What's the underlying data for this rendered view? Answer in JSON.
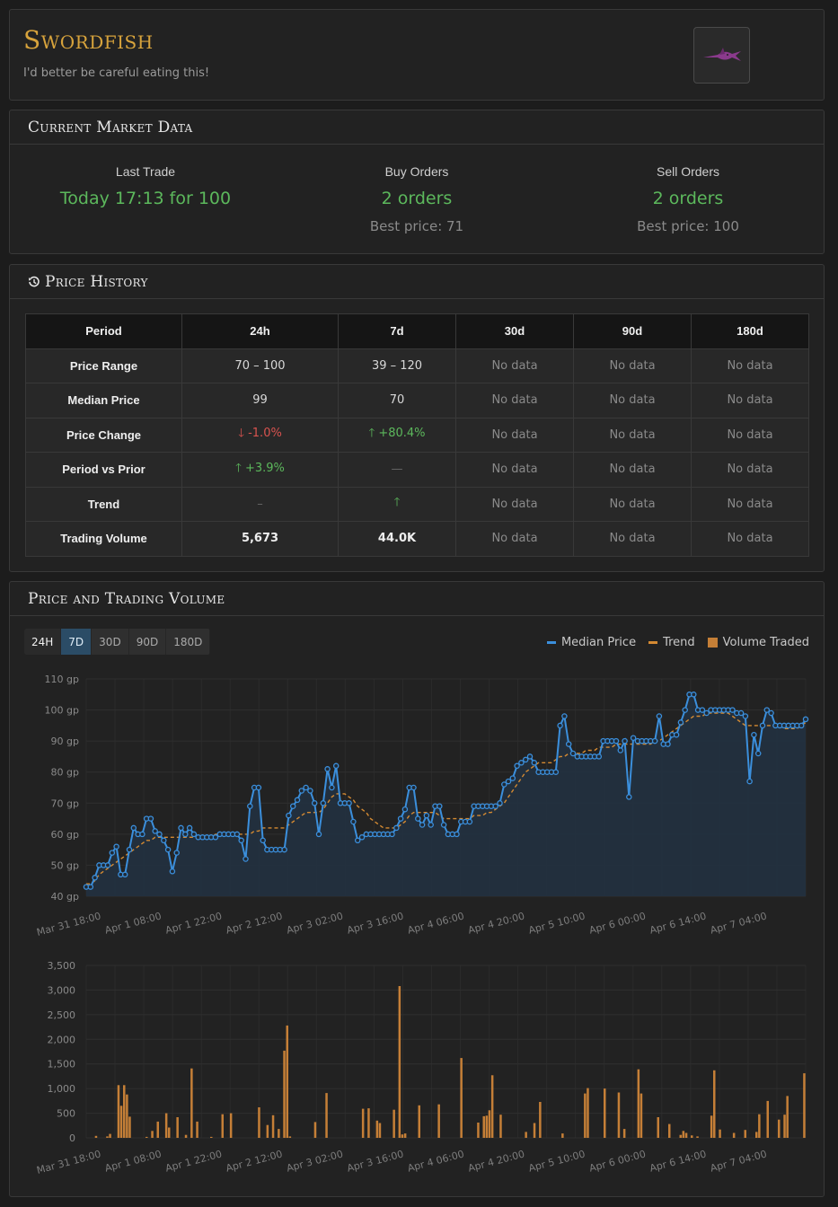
{
  "item": {
    "name": "Swordfish",
    "examine": "I'd better be careful eating this!",
    "icon": "swordfish-icon"
  },
  "market": {
    "title": "Current Market Data",
    "last_trade": {
      "label": "Last Trade",
      "value": "Today 17:13 for 100"
    },
    "buy_orders": {
      "label": "Buy Orders",
      "value": "2 orders",
      "best": "Best price: 71"
    },
    "sell_orders": {
      "label": "Sell Orders",
      "value": "2 orders",
      "best": "Best price: 100"
    }
  },
  "history": {
    "title": "Price History",
    "icon": "history-icon",
    "columns": [
      "Period",
      "24h",
      "7d",
      "30d",
      "90d",
      "180d"
    ],
    "no_data": "No data",
    "rows": [
      {
        "label": "Price Range",
        "h24": "70 – 100",
        "d7": "39 – 120"
      },
      {
        "label": "Median Price",
        "h24": "99",
        "d7": "70"
      },
      {
        "label": "Price Change",
        "h24": "-1.0%",
        "d7": "+80.4%"
      },
      {
        "label": "Period vs Prior",
        "h24": "+3.9%",
        "d7": "—"
      },
      {
        "label": "Trend",
        "h24": "–",
        "d7": ""
      },
      {
        "label": "Trading Volume",
        "h24": "5,673",
        "d7": "44.0K"
      }
    ]
  },
  "chart_panel": {
    "title": "Price and Trading Volume",
    "ranges": [
      "24H",
      "7D",
      "30D",
      "90D",
      "180D"
    ],
    "active_range": "7D",
    "colors": {
      "median": "#3b8fdc",
      "trend": "#d48a32",
      "volume": "#c57f37"
    }
  },
  "chart_data": [
    {
      "type": "line",
      "y_unit": "gp",
      "y_ticks": [
        "110 gp",
        "100 gp",
        "90 gp",
        "80 gp",
        "70 gp",
        "60 gp",
        "50 gp",
        "40 gp"
      ],
      "ylim": [
        40,
        110
      ],
      "x_ticks": [
        "Mar 31 18:00",
        "Apr 1 08:00",
        "Apr 1 22:00",
        "Apr 2 12:00",
        "Apr 3 02:00",
        "Apr 3 16:00",
        "Apr 4 06:00",
        "Apr 4 20:00",
        "Apr 5 10:00",
        "Apr 6 00:00",
        "Apr 6 14:00",
        "Apr 7 04:00"
      ],
      "x_range": [
        "Mar 31 18:00",
        "Apr 7 17:00"
      ],
      "grid": true,
      "legend": "top-right",
      "series": [
        {
          "name": "Median Price",
          "values": [
            43,
            43,
            46,
            50,
            50,
            50,
            54,
            56,
            47,
            47,
            55,
            62,
            60,
            60,
            65,
            65,
            61,
            60,
            58,
            55,
            48,
            54,
            62,
            60,
            62,
            60,
            59,
            59,
            59,
            59,
            59,
            60,
            60,
            60,
            60,
            60,
            58,
            52,
            69,
            75,
            75,
            58,
            55,
            55,
            55,
            55,
            55,
            66,
            69,
            71,
            74,
            75,
            74,
            70,
            60,
            70,
            81,
            75,
            82,
            70,
            70,
            70,
            64,
            58,
            59,
            60,
            60,
            60,
            60,
            60,
            60,
            60,
            62,
            65,
            68,
            75,
            75,
            65,
            63,
            66,
            63,
            69,
            69,
            63,
            60,
            60,
            60,
            64,
            64,
            64,
            69,
            69,
            69,
            69,
            69,
            69,
            70,
            76,
            77,
            78,
            82,
            83,
            84,
            85,
            83,
            80,
            80,
            80,
            80,
            80,
            95,
            98,
            89,
            86,
            85,
            85,
            85,
            85,
            85,
            85,
            90,
            90,
            90,
            90,
            87,
            90,
            72,
            91,
            90,
            90,
            90,
            90,
            90,
            98,
            89,
            89,
            92,
            92,
            96,
            100,
            105,
            105,
            100,
            100,
            99,
            100,
            100,
            100,
            100,
            100,
            100,
            99,
            99,
            98,
            77,
            92,
            86,
            95,
            100,
            99,
            95,
            95,
            95,
            95,
            95,
            95,
            95,
            97
          ]
        },
        {
          "name": "Trend",
          "values": [
            44,
            44,
            45,
            47,
            48,
            49,
            50,
            51,
            52,
            53,
            54,
            55,
            56,
            57,
            58,
            58,
            59,
            59,
            59,
            59,
            59,
            59,
            59,
            59,
            59,
            59,
            59,
            59,
            59,
            59,
            60,
            60,
            60,
            60,
            60,
            60,
            60,
            60,
            60,
            61,
            61,
            62,
            62,
            62,
            62,
            62,
            62,
            63,
            64,
            65,
            66,
            67,
            67,
            67,
            67,
            68,
            70,
            72,
            73,
            73,
            73,
            72,
            71,
            69,
            68,
            67,
            65,
            64,
            63,
            62,
            62,
            62,
            62,
            63,
            64,
            66,
            67,
            67,
            67,
            67,
            67,
            67,
            66,
            65,
            65,
            65,
            65,
            65,
            65,
            65,
            66,
            66,
            66,
            67,
            67,
            68,
            69,
            70,
            72,
            74,
            76,
            78,
            80,
            81,
            82,
            83,
            83,
            83,
            83,
            84,
            85,
            85,
            86,
            86,
            86,
            86,
            87,
            87,
            87,
            88,
            88,
            88,
            88,
            89,
            89,
            89,
            89,
            89,
            89,
            89,
            89,
            89,
            90,
            90,
            91,
            92,
            93,
            94,
            95,
            96,
            97,
            98,
            98,
            98,
            99,
            99,
            99,
            99,
            99,
            99,
            98,
            97,
            96,
            95,
            95,
            95,
            95,
            95,
            95,
            95,
            95,
            95,
            94,
            94,
            94,
            94,
            95,
            96
          ]
        }
      ]
    },
    {
      "type": "bar",
      "y_ticks": [
        "3,500",
        "3,000",
        "2,500",
        "2,000",
        "1,500",
        "1,000",
        "500",
        "0"
      ],
      "ylim": [
        0,
        3500
      ],
      "x_ticks": [
        "Mar 31 18:00",
        "Apr 1 08:00",
        "Apr 1 22:00",
        "Apr 2 12:00",
        "Apr 3 02:00",
        "Apr 3 16:00",
        "Apr 4 06:00",
        "Apr 4 20:00",
        "Apr 5 10:00",
        "Apr 6 00:00",
        "Apr 6 14:00",
        "Apr 7 04:00"
      ],
      "series": [
        {
          "name": "Volume Traded",
          "values": [
            0,
            0,
            0,
            40,
            0,
            0,
            0,
            30,
            80,
            0,
            0,
            1070,
            650,
            1070,
            880,
            430,
            0,
            0,
            0,
            0,
            0,
            20,
            0,
            140,
            0,
            330,
            0,
            0,
            500,
            210,
            0,
            0,
            420,
            0,
            0,
            60,
            0,
            1410,
            0,
            330,
            0,
            0,
            0,
            0,
            20,
            0,
            0,
            0,
            480,
            0,
            0,
            500,
            0,
            0,
            0,
            0,
            0,
            0,
            0,
            0,
            0,
            620,
            0,
            0,
            260,
            0,
            460,
            0,
            180,
            0,
            1770,
            2280,
            30,
            0,
            0,
            0,
            0,
            0,
            0,
            0,
            0,
            320,
            0,
            0,
            0,
            910,
            0,
            0,
            0,
            0,
            0,
            0,
            0,
            0,
            0,
            0,
            0,
            0,
            590,
            0,
            600,
            0,
            0,
            350,
            300,
            0,
            0,
            0,
            0,
            570,
            0,
            3080,
            70,
            90,
            0,
            0,
            0,
            0,
            660,
            0,
            0,
            0,
            0,
            0,
            0,
            680,
            0,
            0,
            0,
            0,
            0,
            0,
            0,
            1620,
            0,
            0,
            0,
            0,
            0,
            310,
            0,
            440,
            450,
            560,
            1270,
            0,
            0,
            470,
            0,
            0,
            0,
            0,
            0,
            0,
            0,
            0,
            120,
            0,
            0,
            300,
            0,
            730,
            0,
            0,
            0,
            0,
            0,
            0,
            0,
            90,
            0,
            0,
            0,
            0,
            0,
            0,
            0,
            900,
            1010,
            0,
            0,
            0,
            0,
            0,
            1000,
            0,
            0,
            0,
            0,
            920,
            0,
            180,
            0,
            0,
            0,
            0,
            1390,
            900,
            0,
            0,
            0,
            0,
            0,
            420,
            0,
            0,
            0,
            280,
            0,
            0,
            0,
            60,
            140,
            100,
            0,
            50,
            0,
            30,
            0,
            0,
            0,
            0,
            450,
            1370,
            0,
            170,
            0,
            0,
            0,
            0,
            100,
            0,
            0,
            0,
            160,
            0,
            0,
            0,
            120,
            480,
            0,
            0,
            750,
            0,
            0,
            0,
            370,
            0,
            470,
            850,
            0,
            0,
            0,
            0,
            0,
            1310
          ]
        }
      ]
    }
  ]
}
